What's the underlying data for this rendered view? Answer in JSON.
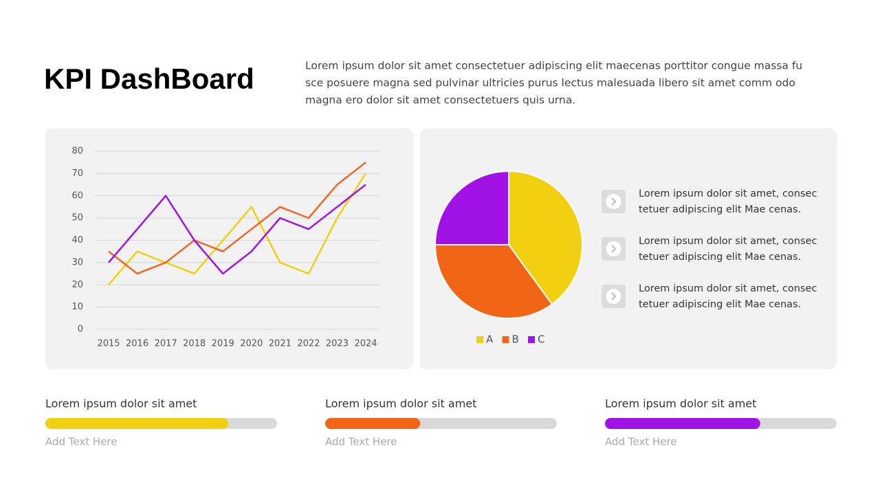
{
  "header": {
    "title": "KPI DashBoard",
    "description": [
      "Lorem ipsum dolor sit amet consectetuer adipiscing elit maecenas porttitor congue massa fu",
      "sce posuere magna sed pulvinar ultricies purus lectus malesuada libero sit amet comm odo",
      "magna ero dolor sit amet consectetuers quis urna."
    ]
  },
  "info_items": [
    [
      "Lorem ipsum dolor sit amet, consec",
      "tetuer adipiscing elit Mae cenas."
    ],
    [
      "Lorem ipsum dolor sit amet, consec",
      "tetuer adipiscing elit Mae cenas."
    ],
    [
      "Lorem ipsum dolor sit amet, consec",
      "tetuer adipiscing elit Mae cenas."
    ]
  ],
  "chart_data": [
    {
      "type": "line",
      "categories": [
        "2015",
        "2016",
        "2017",
        "2018",
        "2019",
        "2020",
        "2021",
        "2022",
        "2023",
        "2024"
      ],
      "series": [
        {
          "color": "#f0d010",
          "values": [
            20,
            35,
            30,
            25,
            40,
            55,
            30,
            25,
            50,
            70
          ]
        },
        {
          "color": "#f26522",
          "values": [
            35,
            25,
            30,
            40,
            35,
            45,
            55,
            50,
            65,
            75
          ]
        },
        {
          "color": "#a012e6",
          "values": [
            30,
            45,
            60,
            40,
            25,
            35,
            50,
            45,
            55,
            65
          ]
        }
      ],
      "ylim": [
        0,
        80
      ],
      "yticks": [
        0,
        10,
        20,
        30,
        40,
        50,
        60,
        70,
        80
      ],
      "grid": true
    },
    {
      "type": "pie",
      "categories": [
        "A",
        "B",
        "C"
      ],
      "values": [
        40,
        35,
        25
      ],
      "colors": [
        "#f0d010",
        "#f26515",
        "#a012e6"
      ]
    },
    {
      "type": "progress",
      "categories": [
        "Lorem ipsum dolor sit amet",
        "Lorem ipsum dolor sit amet",
        "Lorem ipsum dolor sit amet"
      ],
      "sublabels": [
        "Add Text Here",
        "Add Text Here",
        "Add Text Here"
      ],
      "values": [
        79,
        41,
        67
      ],
      "xlim": [
        0,
        100
      ],
      "colors": [
        "#f0d010",
        "#f26515",
        "#a012e6"
      ]
    }
  ]
}
